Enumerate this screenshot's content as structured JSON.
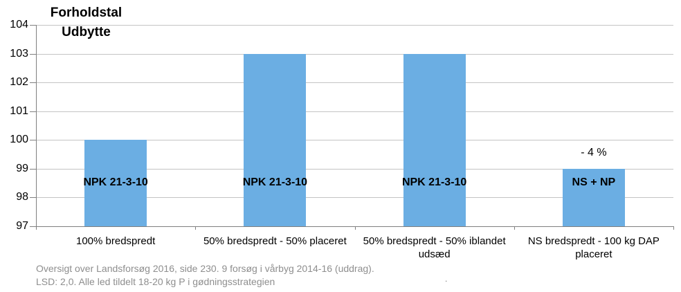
{
  "chart_data": {
    "type": "bar",
    "title": "Forholdstal Udbytte",
    "title_lines": [
      "Forholdstal",
      "Udbytte"
    ],
    "categories": [
      "100% bredspredt",
      "50% bredspredt - 50% placeret",
      "50% bredspredt - 50% iblandet udsæd",
      "NS bredspredt - 100 kg DAP placeret"
    ],
    "values": [
      100,
      103,
      103,
      99
    ],
    "bar_labels": [
      "NPK 21-3-10",
      "NPK 21-3-10",
      "NPK 21-3-10",
      "NS + NP"
    ],
    "annotations": [
      {
        "category_index": 3,
        "text": "- 4 %",
        "value": 99.55
      }
    ],
    "xlabel": "",
    "ylabel": "",
    "ylim": [
      97,
      104
    ],
    "ytick_step": 1,
    "yticks": [
      97,
      98,
      99,
      100,
      101,
      102,
      103,
      104
    ],
    "grid": true,
    "legend": "none",
    "bar_color": "#6BAEE3",
    "gridline_color": "#c3c3c3",
    "axis_color": "#7f7f7f",
    "label_color": "#000000"
  },
  "footer": {
    "line1": "Oversigt over Landsforsøg 2016, side 230. 9 forsøg i vårbyg 2014-16 (uddrag).",
    "line2": "LSD: 2,0. Alle led tildelt 18-20 kg P i gødningsstrategien",
    "text_color": "#8e8e8e",
    "stray_mark": "."
  }
}
